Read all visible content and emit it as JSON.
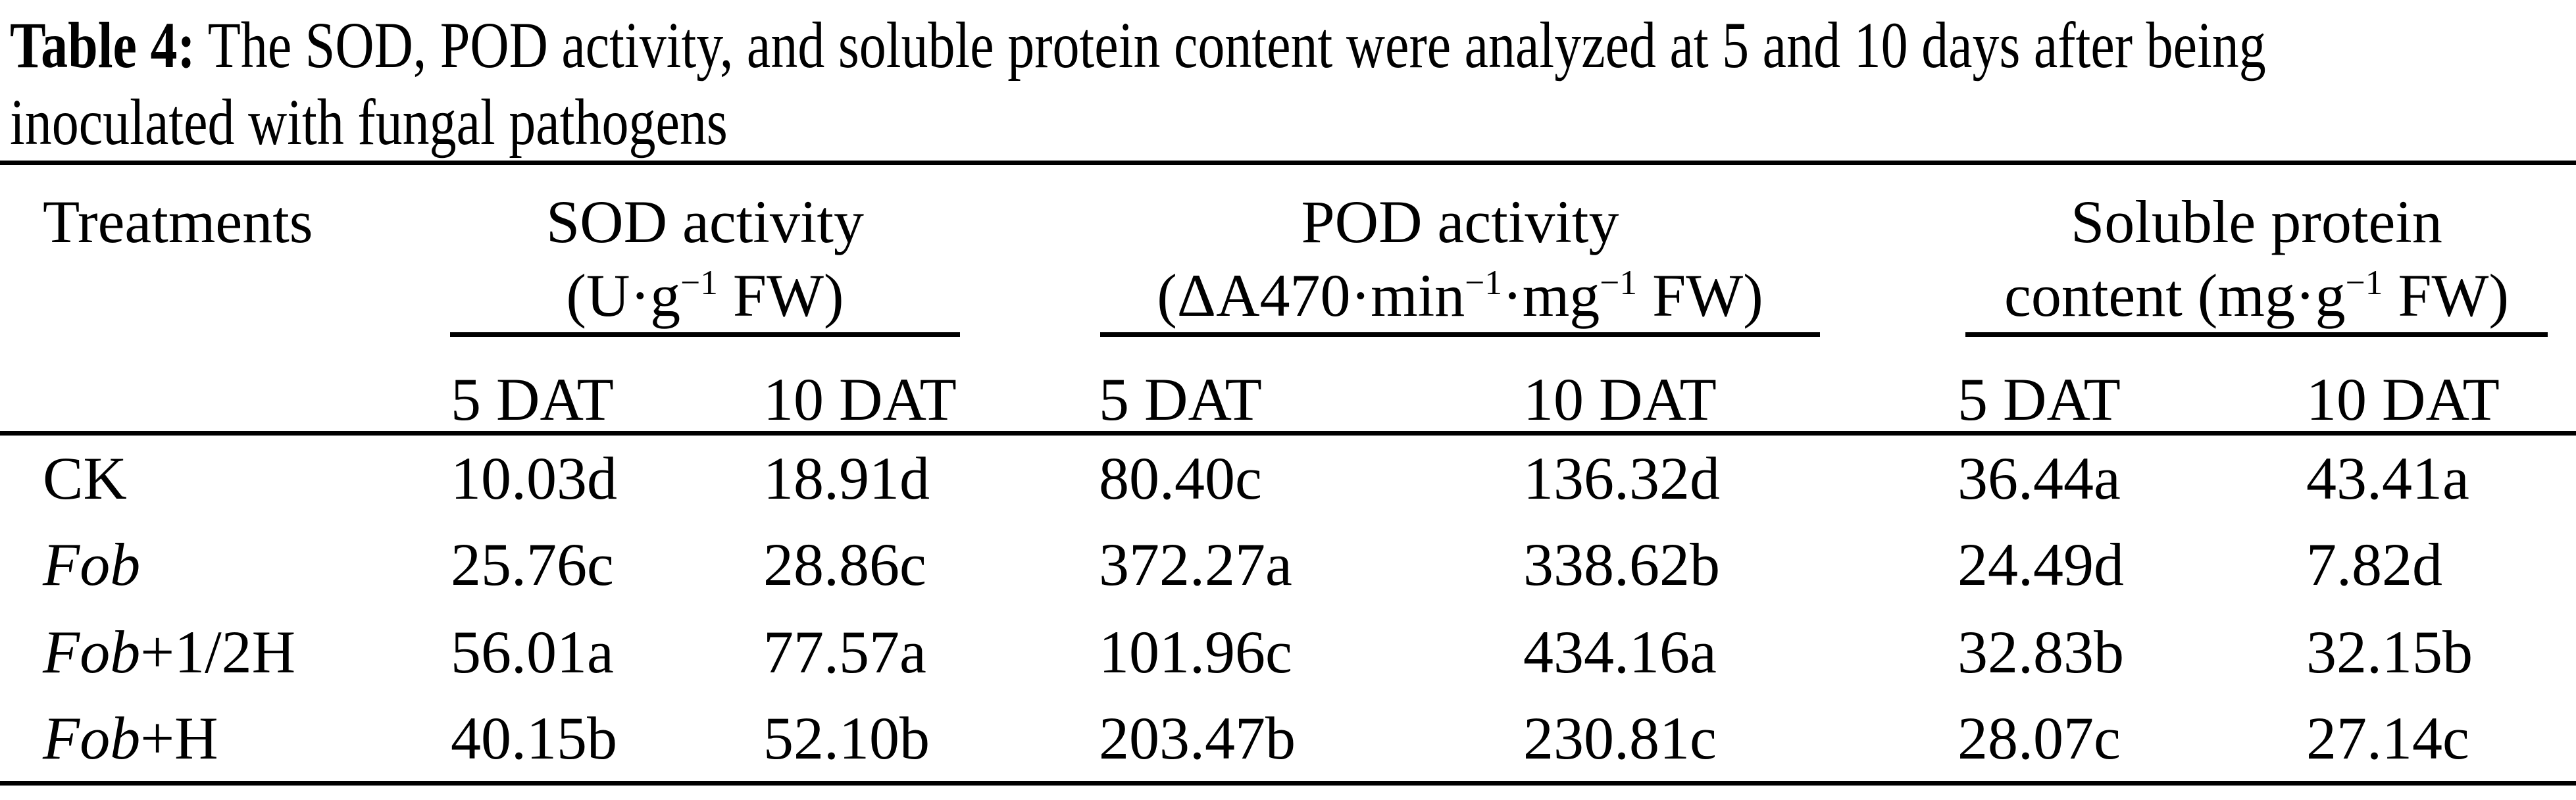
{
  "caption": {
    "line1_segments": [
      {
        "t": "Table 4:",
        "b": true
      },
      {
        "t": " The SOD, POD activity, and soluble protein content were analyzed at 5 and 10 days after being"
      }
    ],
    "line2": "inoculated with fungal pathogens"
  },
  "table": {
    "treatments_header": "Treatments",
    "groups": [
      {
        "line1": "SOD activity",
        "unit_segments": [
          {
            "t": "(U·g"
          },
          {
            "t": "−1",
            "sup": true
          },
          {
            "t": " FW)"
          }
        ]
      },
      {
        "line1": "POD activity",
        "unit_segments": [
          {
            "t": "(ΔA470·min"
          },
          {
            "t": "−1",
            "sup": true
          },
          {
            "t": "·mg"
          },
          {
            "t": "−1",
            "sup": true
          },
          {
            "t": " FW)"
          }
        ]
      },
      {
        "line1": "Soluble protein",
        "unit_segments": [
          {
            "t": "content (mg·g"
          },
          {
            "t": "−1",
            "sup": true
          },
          {
            "t": " FW)"
          }
        ]
      }
    ],
    "subheaders": [
      "5 DAT",
      "10 DAT",
      "5 DAT",
      "10 DAT",
      "5 DAT",
      "10 DAT"
    ],
    "rows": [
      {
        "treatment_segments": [
          {
            "t": "CK"
          }
        ],
        "values": [
          "10.03d",
          "18.91d",
          "80.40c",
          "136.32d",
          "36.44a",
          "43.41a"
        ]
      },
      {
        "treatment_segments": [
          {
            "t": "Fob",
            "i": true
          }
        ],
        "values": [
          "25.76c",
          "28.86c",
          "372.27a",
          "338.62b",
          "24.49d",
          "7.82d"
        ]
      },
      {
        "treatment_segments": [
          {
            "t": "Fob",
            "i": true
          },
          {
            "t": "+1/2H"
          }
        ],
        "values": [
          "56.01a",
          "77.57a",
          "101.96c",
          "434.16a",
          "32.83b",
          "32.15b"
        ]
      },
      {
        "treatment_segments": [
          {
            "t": "Fob",
            "i": true
          },
          {
            "t": "+H"
          }
        ],
        "values": [
          "40.15b",
          "52.10b",
          "203.47b",
          "230.81c",
          "28.07c",
          "27.14c"
        ]
      }
    ]
  },
  "colors": {
    "text": "#000000",
    "background": "#ffffff",
    "rules": "#000000"
  }
}
